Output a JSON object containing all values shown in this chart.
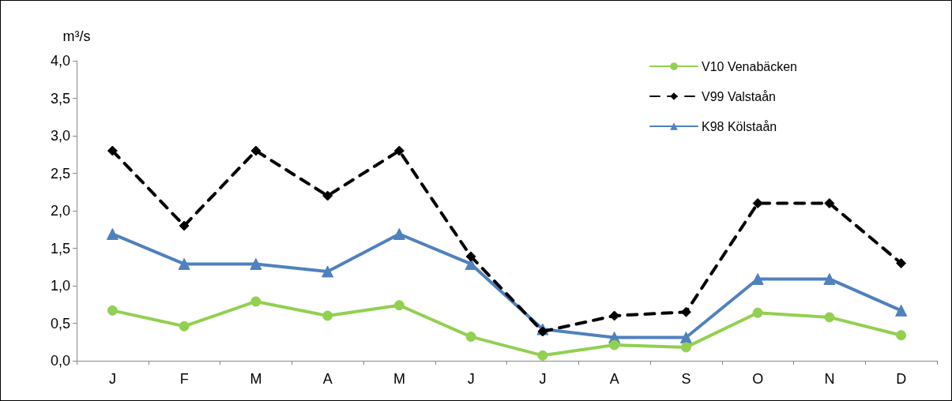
{
  "chart_data": {
    "type": "line",
    "ylabel": "m³/s",
    "categories": [
      "J",
      "F",
      "M",
      "A",
      "M",
      "J",
      "J",
      "A",
      "S",
      "O",
      "N",
      "D"
    ],
    "series": [
      {
        "name": "V10 Venabäcken",
        "color": "#92d050",
        "marker": "circle",
        "line_style": "solid",
        "values": [
          0.67,
          0.46,
          0.79,
          0.6,
          0.74,
          0.32,
          0.07,
          0.21,
          0.18,
          0.64,
          0.58,
          0.34
        ]
      },
      {
        "name": "V99 Valstaån",
        "color": "#000000",
        "marker": "diamond",
        "line_style": "dashed",
        "values": [
          2.8,
          1.8,
          2.8,
          2.2,
          2.8,
          1.39,
          0.39,
          0.6,
          0.65,
          2.1,
          2.1,
          1.3
        ]
      },
      {
        "name": "K98 Kölstaån",
        "color": "#4f81bd",
        "marker": "triangle",
        "line_style": "solid",
        "values": [
          1.69,
          1.29,
          1.29,
          1.19,
          1.69,
          1.29,
          0.42,
          0.31,
          0.31,
          1.09,
          1.09,
          0.67
        ]
      }
    ],
    "ylim": [
      0,
      4
    ],
    "yticks": [
      {
        "value": 0,
        "label": "0,0"
      },
      {
        "value": 0.5,
        "label": "0,5"
      },
      {
        "value": 1,
        "label": "1,0"
      },
      {
        "value": 1.5,
        "label": "1,5"
      },
      {
        "value": 2,
        "label": "2,0"
      },
      {
        "value": 2.5,
        "label": "2,5"
      },
      {
        "value": 3,
        "label": "3,0"
      },
      {
        "value": 3.5,
        "label": "3,5"
      },
      {
        "value": 4,
        "label": "4,0"
      }
    ],
    "grid": false,
    "legend": "top right"
  }
}
